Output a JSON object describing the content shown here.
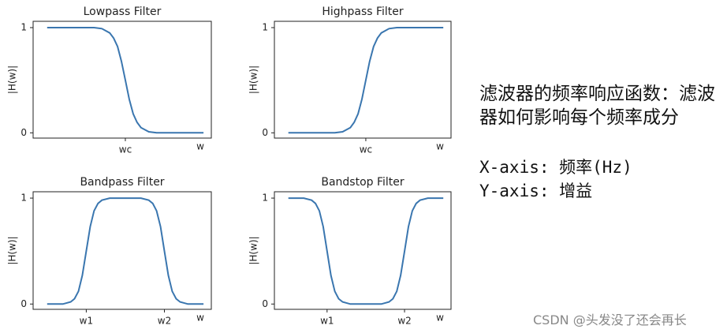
{
  "chart_data": [
    {
      "type": "line",
      "title": "Lowpass Filter",
      "ylabel": "|H(w)|",
      "xlabel": "w",
      "color": "#3a76af",
      "x": [
        0,
        1,
        2,
        3,
        3.5,
        4,
        4.25,
        4.5,
        4.75,
        5,
        5.25,
        5.5,
        5.75,
        6,
        6.5,
        7,
        8,
        9,
        10
      ],
      "values": [
        1,
        1,
        1,
        1,
        0.99,
        0.95,
        0.9,
        0.82,
        0.68,
        0.5,
        0.32,
        0.18,
        0.1,
        0.05,
        0.01,
        0,
        0,
        0,
        0
      ],
      "xlim": [
        -0.9,
        10.5
      ],
      "ylim": [
        -0.05,
        1.06
      ],
      "yticks": [
        0,
        1
      ],
      "xticks": [
        {
          "value": 5,
          "label": "wc"
        }
      ]
    },
    {
      "type": "line",
      "title": "Highpass Filter",
      "ylabel": "|H(w)|",
      "xlabel": "w",
      "color": "#3a76af",
      "x": [
        0,
        1,
        2,
        3,
        3.5,
        4,
        4.25,
        4.5,
        4.75,
        5,
        5.25,
        5.5,
        5.75,
        6,
        6.5,
        7,
        8,
        9,
        10
      ],
      "values": [
        0,
        0,
        0,
        0,
        0.01,
        0.05,
        0.1,
        0.18,
        0.32,
        0.5,
        0.68,
        0.82,
        0.9,
        0.95,
        0.99,
        1,
        1,
        1,
        1
      ],
      "xlim": [
        -0.9,
        10.5
      ],
      "ylim": [
        -0.05,
        1.06
      ],
      "yticks": [
        0,
        1
      ],
      "xticks": [
        {
          "value": 5,
          "label": "wc"
        }
      ]
    },
    {
      "type": "line",
      "title": "Bandpass Filter",
      "ylabel": "|H(w)|",
      "xlabel": "w",
      "color": "#3a76af",
      "x": [
        0,
        1,
        1.5,
        1.75,
        2,
        2.25,
        2.5,
        2.75,
        3,
        3.25,
        3.5,
        4,
        5,
        6,
        6.5,
        6.75,
        7,
        7.25,
        7.5,
        7.75,
        8,
        8.25,
        8.5,
        9,
        10
      ],
      "values": [
        0,
        0,
        0.02,
        0.05,
        0.12,
        0.27,
        0.5,
        0.73,
        0.88,
        0.95,
        0.98,
        1,
        1,
        1,
        0.98,
        0.95,
        0.88,
        0.73,
        0.5,
        0.27,
        0.12,
        0.05,
        0.02,
        0,
        0
      ],
      "xlim": [
        -0.9,
        10.5
      ],
      "ylim": [
        -0.05,
        1.06
      ],
      "yticks": [
        0,
        1
      ],
      "xticks": [
        {
          "value": 2.5,
          "label": "w1"
        },
        {
          "value": 7.5,
          "label": "w2"
        }
      ]
    },
    {
      "type": "line",
      "title": "Bandstop Filter",
      "ylabel": "|H(w)|",
      "xlabel": "w",
      "color": "#3a76af",
      "x": [
        0,
        1,
        1.5,
        1.75,
        2,
        2.25,
        2.5,
        2.75,
        3,
        3.25,
        3.5,
        4,
        5,
        6,
        6.5,
        6.75,
        7,
        7.25,
        7.5,
        7.75,
        8,
        8.25,
        8.5,
        9,
        10
      ],
      "values": [
        1,
        1,
        0.98,
        0.95,
        0.88,
        0.73,
        0.5,
        0.27,
        0.12,
        0.05,
        0.02,
        0,
        0,
        0,
        0.02,
        0.05,
        0.12,
        0.27,
        0.5,
        0.73,
        0.88,
        0.95,
        0.98,
        1,
        1
      ],
      "xlim": [
        -0.9,
        10.5
      ],
      "ylim": [
        -0.05,
        1.06
      ],
      "yticks": [
        0,
        1
      ],
      "xticks": [
        {
          "value": 2.5,
          "label": "w1"
        },
        {
          "value": 7.5,
          "label": "w2"
        }
      ]
    }
  ],
  "notes": {
    "description": "滤波器的频率响应函数：滤波器如何影响每个频率成分",
    "x_axis": "X-axis: 频率(Hz)",
    "y_axis": "Y-axis: 增益"
  },
  "watermark": "CSDN @头发没了还会再长"
}
